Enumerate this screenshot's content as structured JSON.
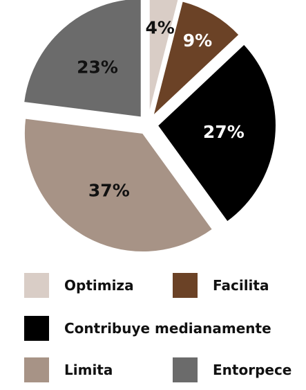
{
  "chart_data": {
    "type": "pie",
    "slices": [
      {
        "label": "Optimiza",
        "value": 4,
        "value_label": "4%",
        "color": "#d9cdc6",
        "text_color": "#111111"
      },
      {
        "label": "Facilita",
        "value": 9,
        "value_label": "9%",
        "color": "#6b4226",
        "text_color": "#ffffff"
      },
      {
        "label": "Contribuye medianamente",
        "value": 27,
        "value_label": "27%",
        "color": "#000000",
        "text_color": "#ffffff"
      },
      {
        "label": "Limita",
        "value": 37,
        "value_label": "37%",
        "color": "#a79386",
        "text_color": "#111111"
      },
      {
        "label": "Entorpece",
        "value": 23,
        "value_label": "23%",
        "color": "#6b6b6b",
        "text_color": "#111111"
      }
    ],
    "start_angle": "12 o'clock",
    "direction": "clockwise",
    "exploded": true,
    "legend_position": "bottom"
  }
}
